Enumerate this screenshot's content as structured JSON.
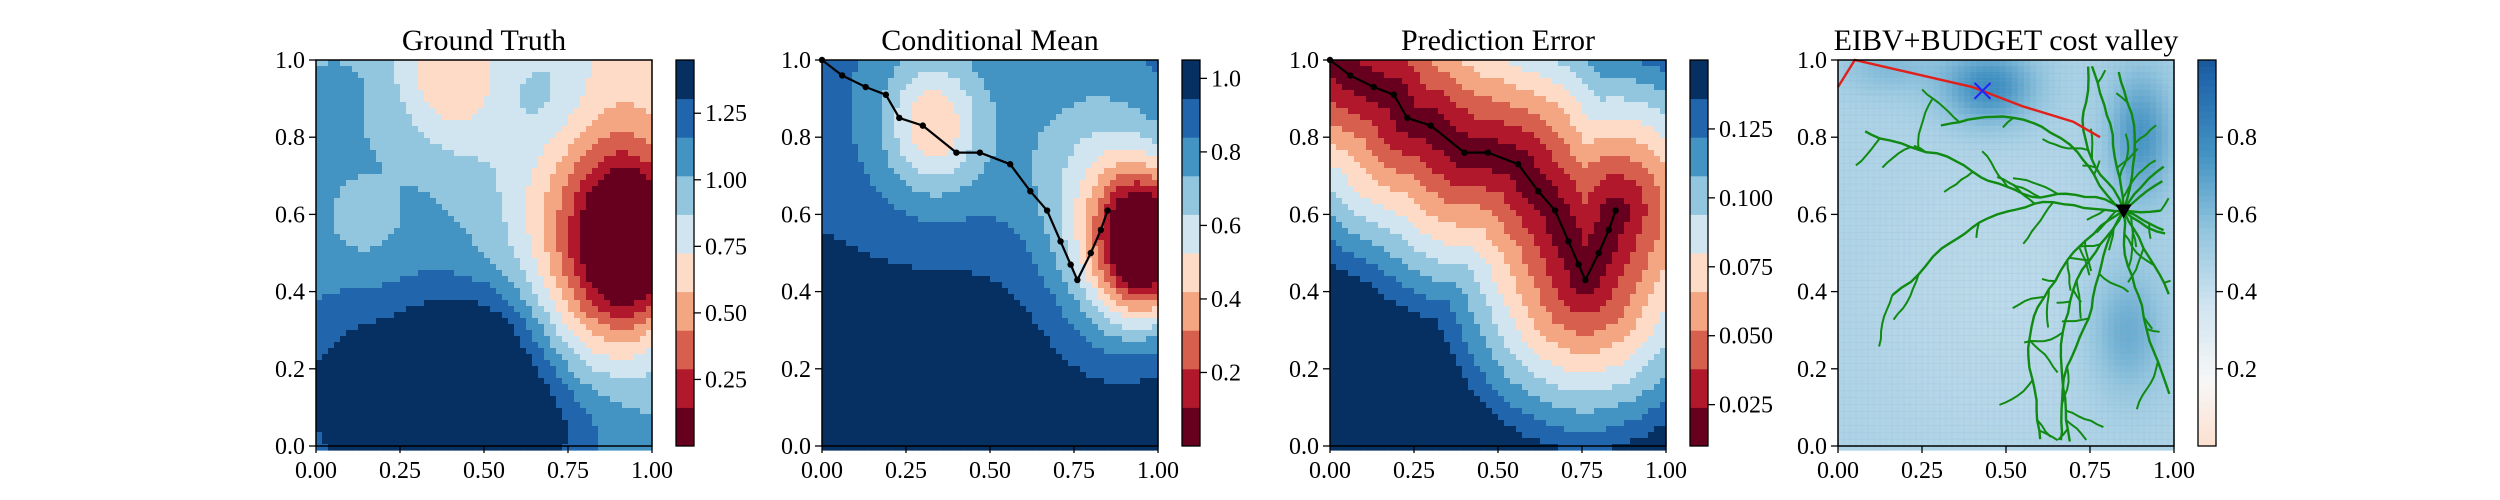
{
  "chart_data": [
    {
      "type": "heatmap",
      "title": "Ground Truth",
      "xlabel": "",
      "ylabel": "",
      "xlim": [
        0,
        1
      ],
      "ylim": [
        0,
        1
      ],
      "x_ticks": [
        "0.00",
        "0.25",
        "0.50",
        "0.75",
        "1.00"
      ],
      "y_ticks": [
        "0.0",
        "0.2",
        "0.4",
        "0.6",
        "0.8",
        "1.0"
      ],
      "colormap": "RdBu",
      "colorbar": {
        "range": [
          0.0,
          1.45
        ],
        "ticks": [
          "0.25",
          "0.50",
          "0.75",
          "1.00",
          "1.25"
        ],
        "tick_values": [
          0.25,
          0.5,
          0.75,
          1.0,
          1.25
        ]
      },
      "features": [
        {
          "kind": "low",
          "x": 0.92,
          "y": 0.55,
          "value": 0.05
        },
        {
          "kind": "low",
          "x": 0.4,
          "y": 0.95,
          "value": 0.65
        },
        {
          "kind": "high",
          "x": 0.3,
          "y": 0.1,
          "value": 1.45
        },
        {
          "kind": "high",
          "x": 0.6,
          "y": 0.05,
          "value": 1.4
        },
        {
          "kind": "high",
          "x": 0.65,
          "y": 0.9,
          "value": 1.1
        }
      ]
    },
    {
      "type": "heatmap",
      "title": "Conditional Mean",
      "xlabel": "",
      "ylabel": "",
      "xlim": [
        0,
        1
      ],
      "ylim": [
        0,
        1
      ],
      "x_ticks": [
        "0.00",
        "0.25",
        "0.50",
        "0.75",
        "1.00"
      ],
      "y_ticks": [
        "0.0",
        "0.2",
        "0.4",
        "0.6",
        "0.8",
        "1.0"
      ],
      "colormap": "RdBu",
      "colorbar": {
        "range": [
          0.0,
          1.05
        ],
        "ticks": [
          "0.2",
          "0.4",
          "0.6",
          "0.8",
          "1.0"
        ],
        "tick_values": [
          0.2,
          0.4,
          0.6,
          0.8,
          1.0
        ]
      },
      "features": [
        {
          "kind": "low",
          "x": 0.95,
          "y": 0.52,
          "value": 0.05
        },
        {
          "kind": "low",
          "x": 0.33,
          "y": 0.83,
          "value": 0.65
        }
      ],
      "path": [
        [
          0.0,
          1.0
        ],
        [
          0.06,
          0.96
        ],
        [
          0.13,
          0.93
        ],
        [
          0.19,
          0.91
        ],
        [
          0.23,
          0.85
        ],
        [
          0.3,
          0.83
        ],
        [
          0.4,
          0.76
        ],
        [
          0.47,
          0.76
        ],
        [
          0.56,
          0.73
        ],
        [
          0.62,
          0.66
        ],
        [
          0.67,
          0.61
        ],
        [
          0.71,
          0.53
        ],
        [
          0.74,
          0.47
        ],
        [
          0.76,
          0.43
        ],
        [
          0.8,
          0.5
        ],
        [
          0.83,
          0.56
        ],
        [
          0.85,
          0.61
        ]
      ]
    },
    {
      "type": "heatmap",
      "title": "Prediction Error",
      "xlabel": "",
      "ylabel": "",
      "xlim": [
        0,
        1
      ],
      "ylim": [
        0,
        1
      ],
      "x_ticks": [
        "0.00",
        "0.25",
        "0.50",
        "0.75",
        "1.00"
      ],
      "y_ticks": [
        "0.0",
        "0.2",
        "0.4",
        "0.6",
        "0.8",
        "1.0"
      ],
      "colormap": "RdBu",
      "colorbar": {
        "range": [
          0.01,
          0.15
        ],
        "ticks": [
          "0.025",
          "0.050",
          "0.075",
          "0.100",
          "0.125"
        ],
        "tick_values": [
          0.025,
          0.05,
          0.075,
          0.1,
          0.125
        ]
      },
      "path": [
        [
          0.0,
          1.0
        ],
        [
          0.06,
          0.96
        ],
        [
          0.13,
          0.93
        ],
        [
          0.19,
          0.91
        ],
        [
          0.23,
          0.85
        ],
        [
          0.3,
          0.83
        ],
        [
          0.4,
          0.76
        ],
        [
          0.47,
          0.76
        ],
        [
          0.56,
          0.73
        ],
        [
          0.62,
          0.66
        ],
        [
          0.67,
          0.61
        ],
        [
          0.71,
          0.53
        ],
        [
          0.74,
          0.47
        ],
        [
          0.76,
          0.43
        ],
        [
          0.8,
          0.5
        ],
        [
          0.83,
          0.56
        ],
        [
          0.85,
          0.61
        ]
      ]
    },
    {
      "type": "heatmap",
      "title": "EIBV+BUDGET cost valley",
      "xlabel": "",
      "ylabel": "",
      "xlim": [
        0,
        1
      ],
      "ylim": [
        0,
        1
      ],
      "x_ticks": [
        "0.00",
        "0.25",
        "0.50",
        "0.75",
        "1.00"
      ],
      "y_ticks": [
        "0.0",
        "0.2",
        "0.4",
        "0.6",
        "0.8",
        "1.0"
      ],
      "colormap": "RdBu",
      "colorbar": {
        "range": [
          0.0,
          1.0
        ],
        "ticks": [
          "0.2",
          "0.4",
          "0.6",
          "0.8"
        ],
        "tick_values": [
          0.2,
          0.4,
          0.6,
          0.8
        ]
      },
      "tree_root": [
        0.85,
        0.61
      ],
      "cross_marker": [
        0.43,
        0.92
      ],
      "red_path": [
        [
          0.0,
          0.93
        ],
        [
          0.05,
          1.0
        ],
        [
          0.4,
          0.93
        ],
        [
          0.55,
          0.88
        ],
        [
          0.7,
          0.84
        ],
        [
          0.78,
          0.8
        ]
      ],
      "features": [
        {
          "kind": "high-cost",
          "x": 0.45,
          "y": 0.93,
          "value": 0.75
        },
        {
          "kind": "high-cost",
          "x": 0.88,
          "y": 0.8,
          "value": 0.7
        },
        {
          "kind": "high-cost",
          "x": 0.85,
          "y": 0.3,
          "value": 0.6
        }
      ]
    }
  ]
}
